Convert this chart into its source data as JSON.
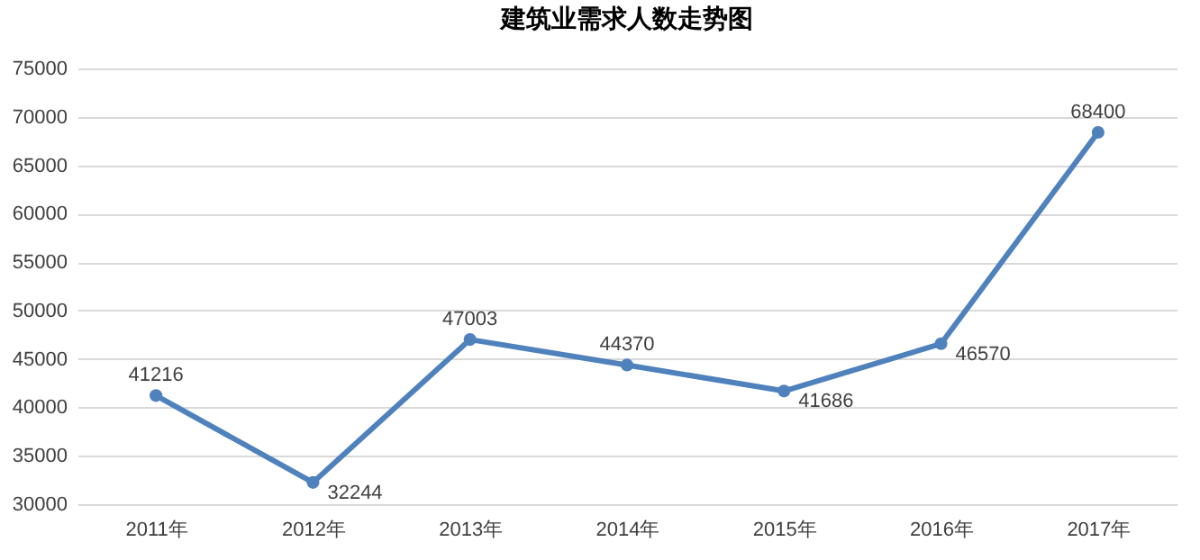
{
  "chart_data": {
    "type": "line",
    "title": "建筑业需求人数走势图",
    "categories": [
      "2011年",
      "2012年",
      "2013年",
      "2014年",
      "2015年",
      "2016年",
      "2017年"
    ],
    "series": [
      {
        "color": "#4f81bd",
        "values": [
          41216,
          32244,
          47003,
          44370,
          41686,
          46570,
          68400
        ]
      }
    ],
    "ylim": [
      30000,
      75000
    ],
    "yticks": [
      30000,
      35000,
      40000,
      45000,
      50000,
      55000,
      60000,
      65000,
      70000,
      75000
    ],
    "grid": "y",
    "marker": "circle",
    "line_style": "solid",
    "data_labels": true
  }
}
